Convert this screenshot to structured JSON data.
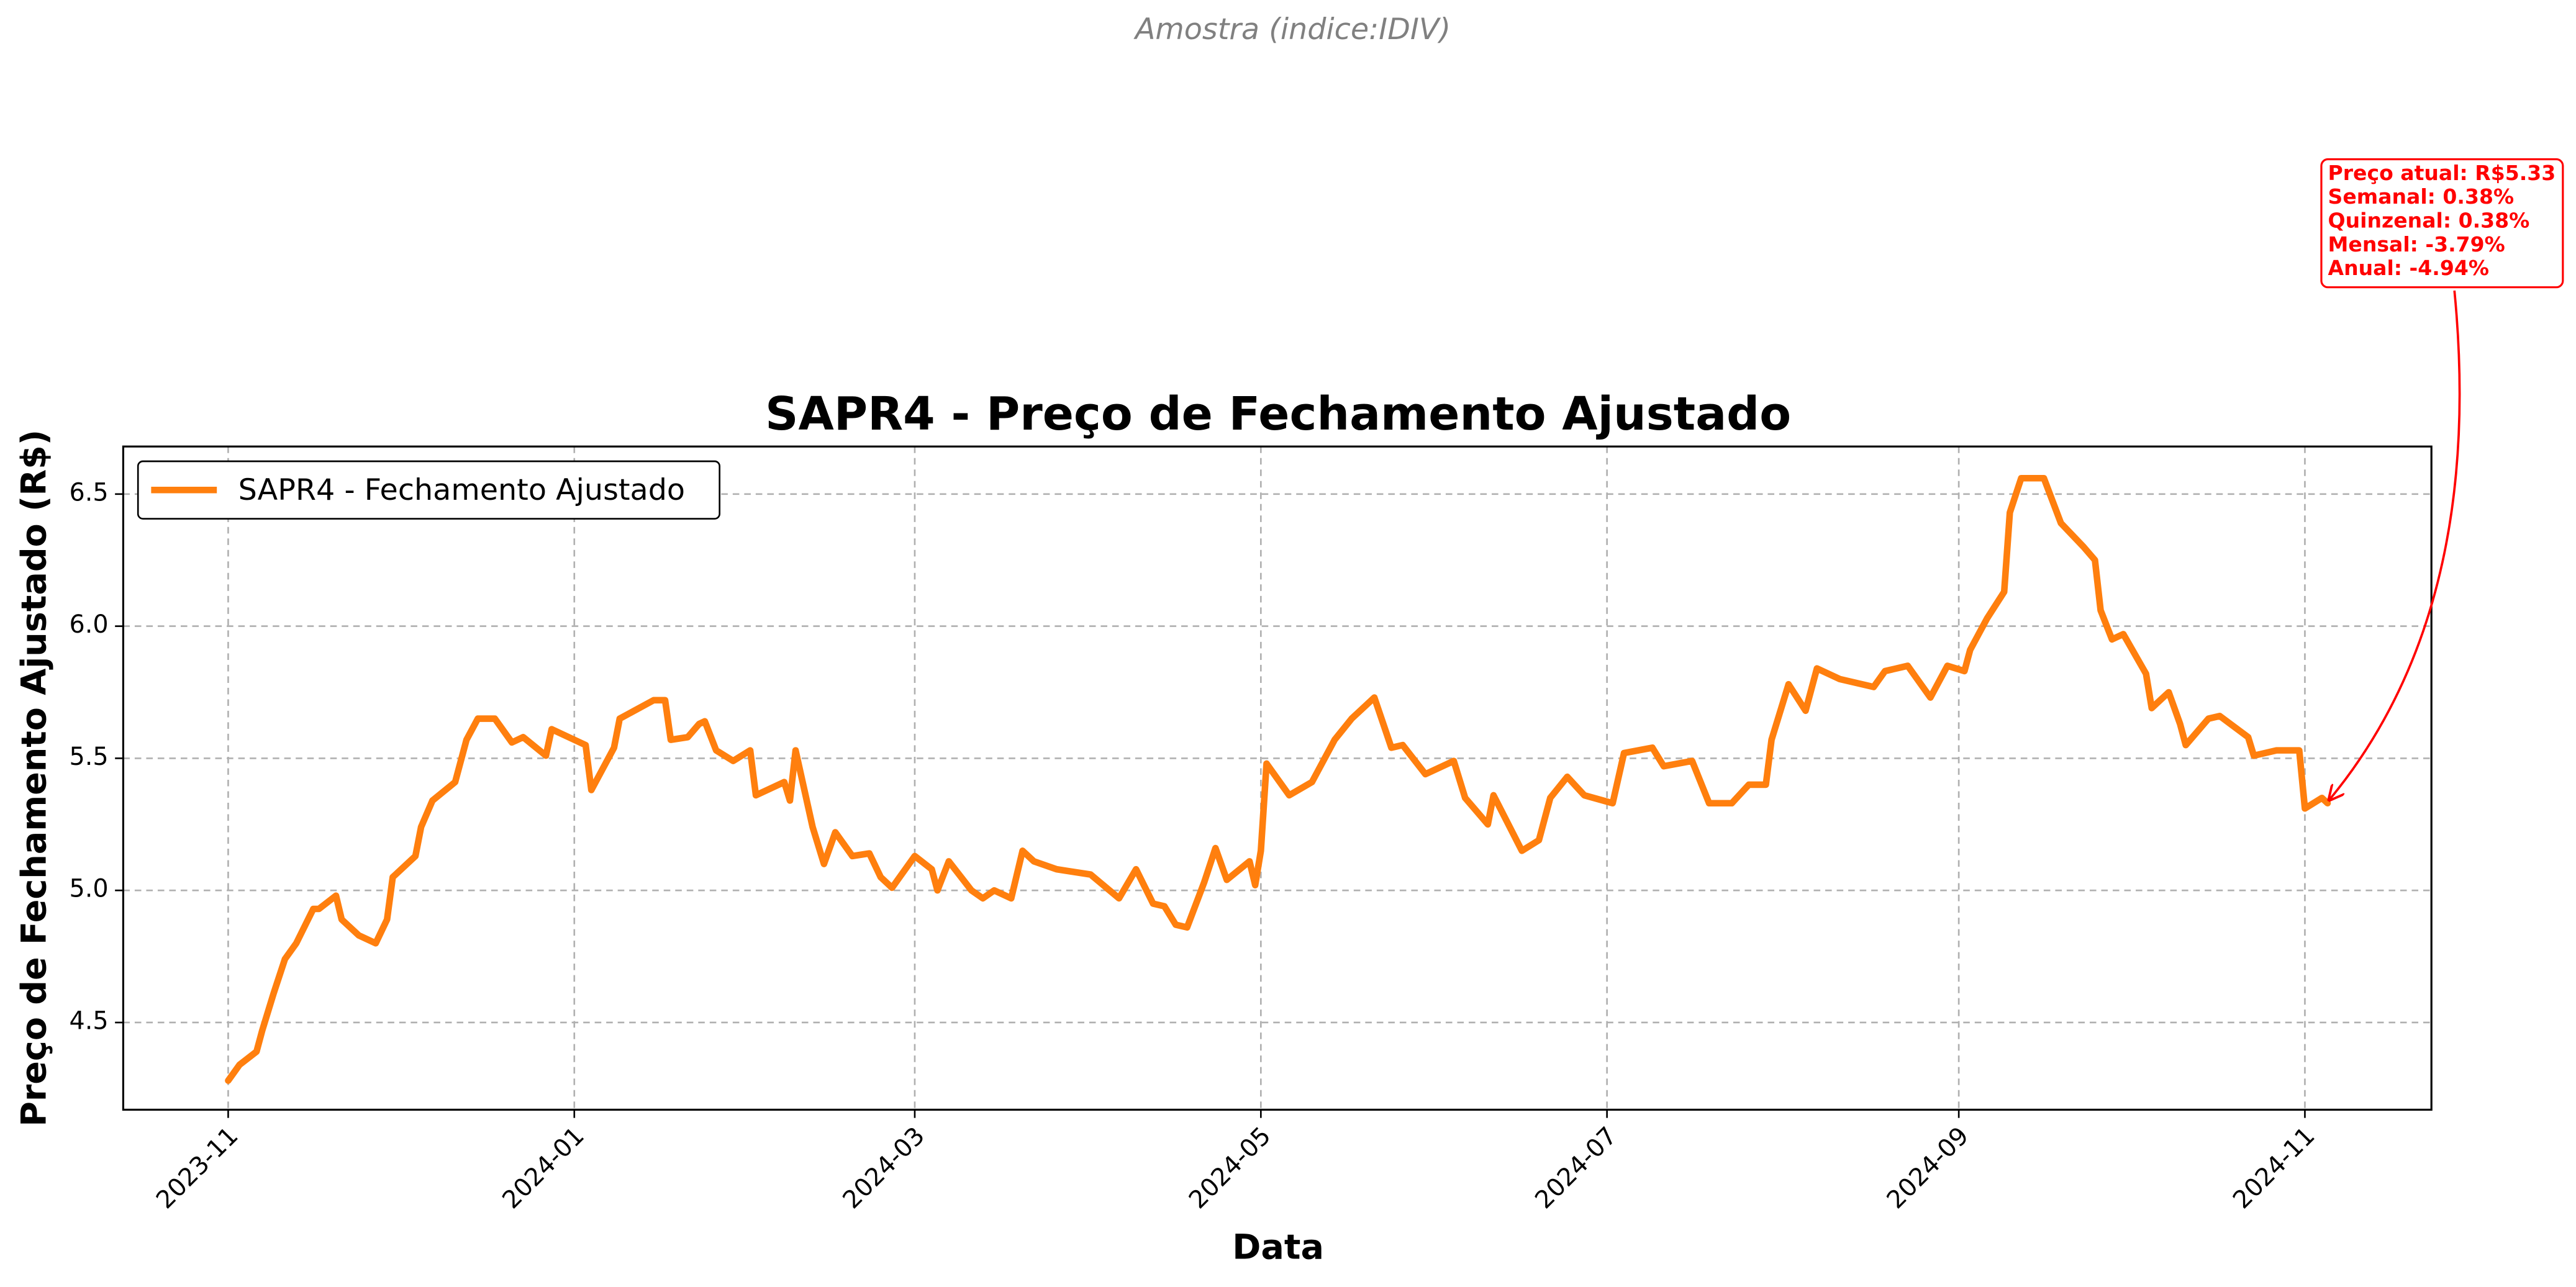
{
  "chart_data": {
    "type": "line",
    "suptitle": "Amostra (indice:IDIV)",
    "title": "SAPR4 - Preço de Fechamento Ajustado",
    "xlabel": "Data",
    "ylabel": "Preço de Fechamento Ajustado (R$)",
    "x": [
      19662,
      19664,
      19667,
      19668,
      19670,
      19672,
      19674,
      19677,
      19678,
      19681,
      19682,
      19685,
      19688,
      19690,
      19691,
      19695,
      19696,
      19698,
      19702,
      19704,
      19706,
      19709,
      19712,
      19714,
      19718,
      19719,
      19724,
      19725,
      19726,
      19730,
      19731,
      19737,
      19739,
      19740,
      19743,
      19745,
      19746,
      19748,
      19751,
      19754,
      19755,
      19760,
      19761,
      19762,
      19765,
      19767,
      19769,
      19772,
      19775,
      19777,
      19779,
      19783,
      19786,
      19787,
      19789,
      19793,
      19795,
      19797,
      19800,
      19802,
      19804,
      19808,
      19814,
      19819,
      19822,
      19825,
      19827,
      19829,
      19831,
      19834,
      19836,
      19838,
      19842,
      19843,
      19844,
      19845,
      19849,
      19853,
      19857,
      19860,
      19864,
      19867,
      19869,
      19873,
      19878,
      19880,
      19884,
      19885,
      19890,
      19893,
      19895,
      19898,
      19901,
      19906,
      19908,
      19913,
      19915,
      19920,
      19923,
      19927,
      19930,
      19933,
      19934,
      19937,
      19940,
      19942,
      19946,
      19952,
      19954,
      19958,
      19962,
      19965,
      19968,
      19969,
      19972,
      19975,
      19976,
      19978,
      19982,
      19985,
      19989,
      19991,
      19992,
      19994,
      19996,
      20000,
      20001,
      20004,
      20006,
      20007,
      20011,
      20013,
      20018,
      20019,
      20023,
      20027,
      20028,
      20031,
      20032
    ],
    "series": [
      {
        "name": "SAPR4 - Fechamento Ajustado",
        "color": "#ff7f0e",
        "values": [
          4.28,
          4.34,
          4.39,
          4.47,
          4.61,
          4.74,
          4.8,
          4.93,
          4.93,
          4.98,
          4.89,
          4.83,
          4.8,
          4.89,
          5.05,
          5.13,
          5.24,
          5.34,
          5.41,
          5.57,
          5.65,
          5.65,
          5.56,
          5.58,
          5.51,
          5.61,
          5.56,
          5.55,
          5.38,
          5.54,
          5.65,
          5.72,
          5.72,
          5.57,
          5.58,
          5.63,
          5.64,
          5.53,
          5.49,
          5.53,
          5.36,
          5.41,
          5.34,
          5.53,
          5.24,
          5.1,
          5.22,
          5.13,
          5.14,
          5.05,
          5.01,
          5.13,
          5.08,
          5.0,
          5.11,
          5.0,
          4.97,
          5.0,
          4.97,
          5.15,
          5.11,
          5.08,
          5.06,
          4.97,
          5.08,
          4.95,
          4.94,
          4.87,
          4.86,
          5.03,
          5.16,
          5.04,
          5.11,
          5.02,
          5.15,
          5.48,
          5.36,
          5.41,
          5.57,
          5.65,
          5.73,
          5.54,
          5.55,
          5.44,
          5.49,
          5.35,
          5.25,
          5.36,
          5.15,
          5.19,
          5.35,
          5.43,
          5.36,
          5.33,
          5.52,
          5.54,
          5.47,
          5.49,
          5.33,
          5.33,
          5.4,
          5.4,
          5.57,
          5.78,
          5.68,
          5.84,
          5.8,
          5.77,
          5.83,
          5.85,
          5.73,
          5.85,
          5.83,
          5.91,
          6.03,
          6.13,
          6.43,
          6.56,
          6.56,
          6.39,
          6.3,
          6.25,
          6.06,
          5.95,
          5.97,
          5.82,
          5.69,
          5.75,
          5.63,
          5.55,
          5.65,
          5.66,
          5.58,
          5.51,
          5.53,
          5.53,
          5.31,
          5.35,
          5.33
        ]
      }
    ],
    "xlim": [
      19643.5,
      20050.3
    ],
    "xticks": [
      {
        "value": 19662,
        "label": "2023-11"
      },
      {
        "value": 19723,
        "label": "2024-01"
      },
      {
        "value": 19783,
        "label": "2024-03"
      },
      {
        "value": 19844,
        "label": "2024-05"
      },
      {
        "value": 19905,
        "label": "2024-07"
      },
      {
        "value": 19967,
        "label": "2024-09"
      },
      {
        "value": 20028,
        "label": "2024-11"
      }
    ],
    "ylim": [
      4.17,
      6.68
    ],
    "yticks": [
      4.5,
      {
        "value": 5,
        "label": "5.0"
      },
      5.5,
      {
        "value": 6,
        "label": "6.0"
      },
      6.5
    ],
    "grid": true,
    "legend": "upper left",
    "annotation": {
      "color": "#ff0000",
      "lines": [
        "Preço atual: R$5.33",
        "Semanal: 0.38%",
        "Quinzenal: 0.38%",
        "Mensal: -3.79%",
        "Anual: -4.94%"
      ]
    }
  }
}
